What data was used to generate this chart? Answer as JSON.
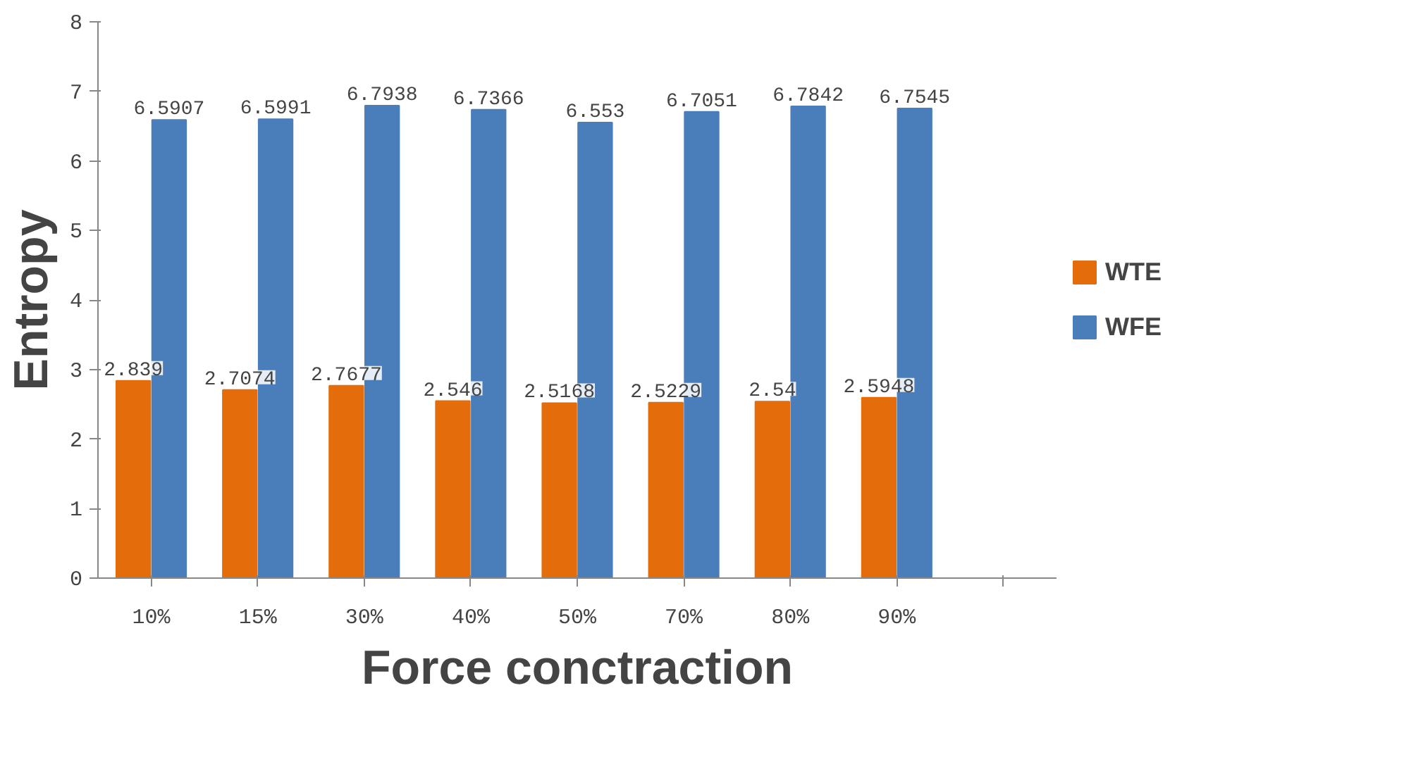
{
  "chart_data": {
    "type": "bar",
    "xlabel": "Force conctraction",
    "ylabel": "Entropy",
    "categories": [
      "10%",
      "15%",
      "30%",
      "40%",
      "50%",
      "70%",
      "80%",
      "90%",
      null
    ],
    "series": [
      {
        "name": "WTE",
        "color": "#e46c0a",
        "values": [
          2.839,
          2.7074,
          2.7677,
          2.546,
          2.5168,
          2.5229,
          2.54,
          2.5948,
          null
        ]
      },
      {
        "name": "WFE",
        "color": "#4a7ebb",
        "values": [
          6.5907,
          6.5991,
          6.7938,
          6.7366,
          6.553,
          6.7051,
          6.7842,
          6.7545,
          null
        ]
      }
    ],
    "ylim": [
      0,
      8
    ],
    "yticks": [
      0,
      1,
      2,
      3,
      4,
      5,
      6,
      7,
      8
    ],
    "grid": false,
    "legend": "right",
    "data_labels": true
  }
}
